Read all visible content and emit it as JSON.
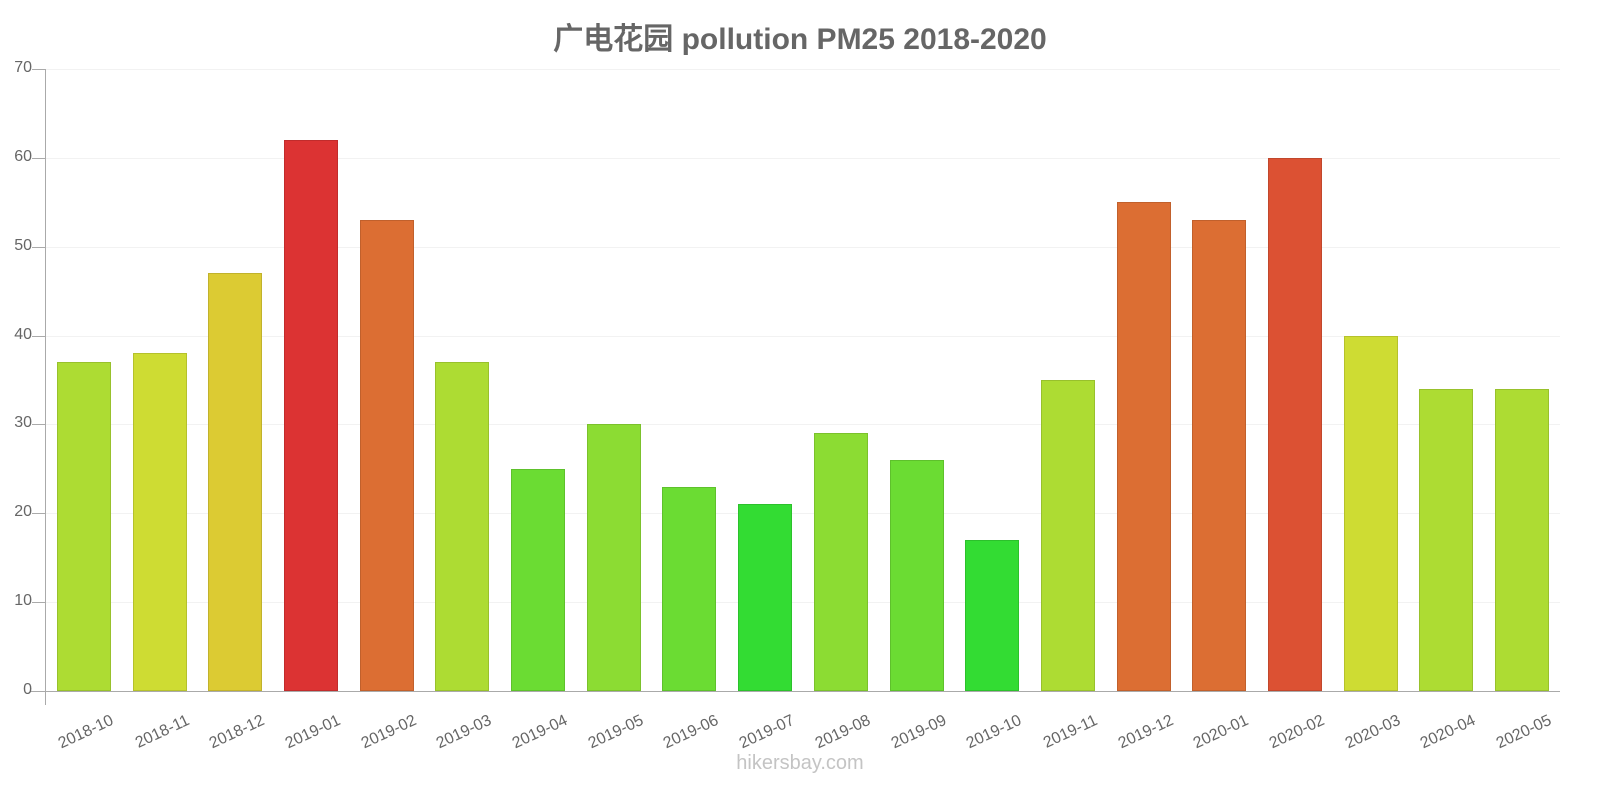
{
  "title": "广电花园 pollution PM25 2018-2020",
  "footer": "hikersbay.com",
  "yaxis": {
    "ticks": [
      "0",
      "10",
      "20",
      "30",
      "40",
      "50",
      "60",
      "70"
    ]
  },
  "chart_data": {
    "type": "bar",
    "title": "广电花园 pollution PM25 2018-2020",
    "xlabel": "",
    "ylabel": "",
    "ylim": [
      0,
      70
    ],
    "yticks": [
      0,
      10,
      20,
      30,
      40,
      50,
      60,
      70
    ],
    "grid": true,
    "legend": "none",
    "categories": [
      "2018-10",
      "2018-11",
      "2018-12",
      "2019-01",
      "2019-02",
      "2019-03",
      "2019-04",
      "2019-05",
      "2019-06",
      "2019-07",
      "2019-08",
      "2019-09",
      "2019-10",
      "2019-11",
      "2019-12",
      "2020-01",
      "2020-02",
      "2020-03",
      "2020-04",
      "2020-05"
    ],
    "values": [
      37,
      38,
      47,
      62,
      53,
      37,
      25,
      30,
      23,
      21,
      29,
      26,
      17,
      35,
      55,
      53,
      60,
      40,
      34,
      34
    ],
    "colors": [
      "#addc33",
      "#cedc33",
      "#dccb33",
      "#dc3333",
      "#dc6e33",
      "#addc33",
      "#6bdc33",
      "#8cdc33",
      "#6bdc33",
      "#33dc33",
      "#8cdc33",
      "#6bdc33",
      "#33dc33",
      "#addc33",
      "#dc6e33",
      "#dc6e33",
      "#dc5133",
      "#cedc33",
      "#addc33",
      "#addc33"
    ]
  }
}
